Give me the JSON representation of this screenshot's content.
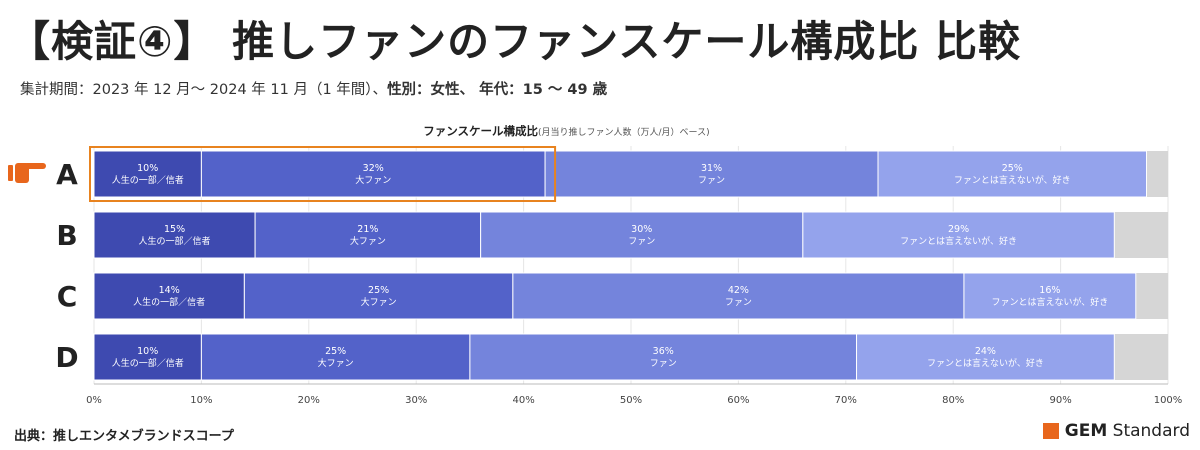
{
  "header": {
    "title": "【検証④】 推しファンのファンスケール構成比 比較",
    "period": "集計期間：2023 年 12 月～ 2024 年 11 月（1 年間）、",
    "filters": "性別：女性、 年代：15 ～ 49 歳"
  },
  "chart_data": {
    "type": "bar",
    "orientation": "horizontal-stacked-100",
    "title": "ファンスケール構成比",
    "title_note": "(月当り推しファン人数（万人/月）ベース)",
    "categories": [
      "A",
      "B",
      "C",
      "D"
    ],
    "highlight_category": "A",
    "highlight_series": [
      "人生の一部／信者",
      "大ファン"
    ],
    "series": [
      {
        "name": "人生の一部／信者",
        "color": "#3e4ab0",
        "values": [
          10,
          15,
          14,
          10
        ]
      },
      {
        "name": "大ファン",
        "color": "#5362c9",
        "values": [
          32,
          21,
          25,
          25
        ]
      },
      {
        "name": "ファン",
        "color": "#7484dc",
        "values": [
          31,
          30,
          42,
          36
        ]
      },
      {
        "name": "ファンとは言えないが、好き",
        "color": "#94a3ec",
        "values": [
          25,
          29,
          16,
          24
        ]
      }
    ],
    "remainder_color": "#d6d6d6",
    "xlim": [
      0,
      100
    ],
    "x_ticks": [
      "0%",
      "10%",
      "20%",
      "30%",
      "40%",
      "50%",
      "60%",
      "70%",
      "80%",
      "90%",
      "100%"
    ]
  },
  "footer": {
    "source": "出典：推しエンタメブランドスコープ",
    "logo_bold": "GEM",
    "logo_rest": " Standard"
  },
  "colors": {
    "highlight_border": "#e8831f",
    "pointer": "#e8661c",
    "logo": "#e8661c"
  },
  "icons": {
    "pointer": "pointing-hand-icon"
  }
}
